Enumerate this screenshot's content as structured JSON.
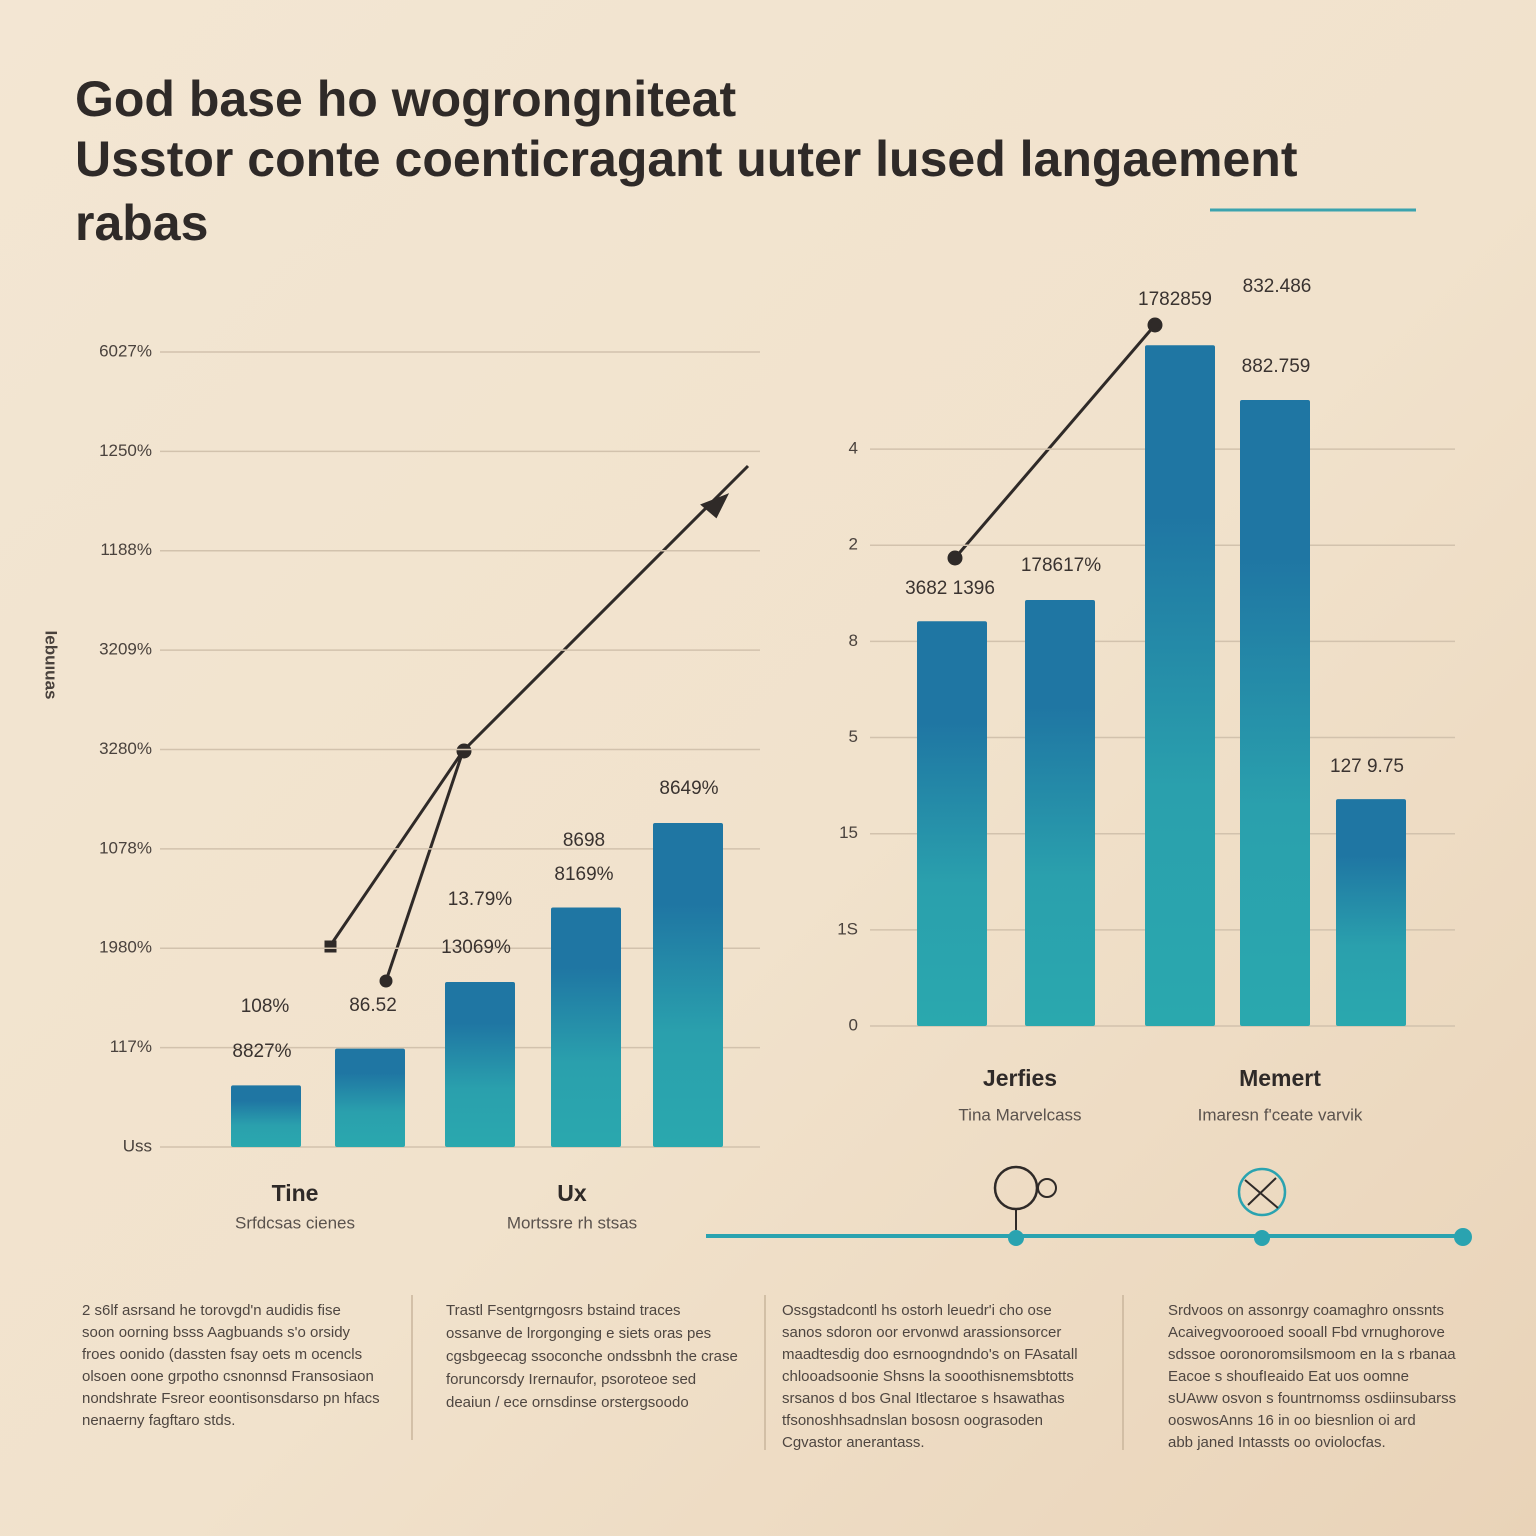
{
  "title": [
    "God base ho wogrongniteat",
    "Usstor conte coenticragant  uuter lused langaement",
    "rabas"
  ],
  "chart_data": [
    {
      "type": "bar",
      "ylabel": "Iebuıuas",
      "color": "#1f76a3",
      "color_bottom": "#2aa8ae",
      "categories": [
        null,
        null,
        null,
        null,
        null
      ],
      "values": [
        0.62,
        0.99,
        1.66,
        2.41,
        3.26
      ],
      "ylim": [
        0,
        8
      ],
      "yticks": [
        {
          "value": 0,
          "label": "Uss"
        },
        {
          "value": 1,
          "label": "117%"
        },
        {
          "value": 2,
          "label": "1980%"
        },
        {
          "value": 3,
          "label": "1078%"
        },
        {
          "value": 4,
          "label": "3280%"
        },
        {
          "value": 5,
          "label": "3209%"
        },
        {
          "value": 6,
          "label": "1188%"
        },
        {
          "value": 7,
          "label": "1250%"
        },
        {
          "value": 8,
          "label": "6027%"
        }
      ],
      "grid": true,
      "annotations": [
        "108%",
        "8827%",
        "86.52",
        "13.79%",
        "13069%",
        "8698",
        "8169%",
        "8649%"
      ],
      "group_labels": [
        {
          "title": "Tine",
          "subtitle": "Srfdcsas cienes"
        },
        {
          "title": "Ux",
          "subtitle": "Mortssre rh stsas"
        }
      ]
    },
    {
      "type": "bar",
      "color": "#1f76a3",
      "color_bottom": "#2aa8ae",
      "categories": [
        null,
        null,
        null,
        null,
        null
      ],
      "values": [
        4.21,
        4.43,
        7.08,
        6.51,
        2.36
      ],
      "ylim": [
        0,
        7.2
      ],
      "yticks": [
        0,
        {
          "value": 1,
          "label": "1S"
        },
        {
          "value": 2,
          "label": "15"
        },
        {
          "value": 3,
          "label": "5"
        },
        {
          "value": 4,
          "label": "8"
        },
        {
          "value": 5,
          "label": "2"
        },
        {
          "value": 6,
          "label": "4"
        }
      ],
      "grid": true,
      "annotations": [
        "3682 1396",
        "178617%",
        "1782859",
        "832.486",
        "882.759",
        "127 9.75"
      ],
      "group_labels": [
        {
          "title": "Jerfies",
          "subtitle": "Tina Marvelcass"
        },
        {
          "title": "Memert",
          "subtitle": "Imaresn f'ceate varvik"
        }
      ]
    }
  ],
  "notes": [
    [
      "2 s6lf asrsand he torovgd'n audidis fise",
      "soon oorning bsss Aagbuands s'o orsidy",
      "froes oonido (dassten fsay oets m ocencls",
      "olsoen oone grpotho csnonnsd Fransosiaon",
      "nondshrate Fsreor eoontisonsdarso pn hfacs",
      "nenaerny fagftaro stds."
    ],
    [
      "Trastl Fsentgrngosrs bstaind traces",
      "ossanve de lrorgonging e siets oras pes",
      "cgsbgeecag ssoconche ondssbnh the crase",
      "foruncorsdy Irernaufor, psoroteoe sed",
      "deaiun / ece ornsdinse orstergsoodo"
    ],
    [
      "Ossgstadcontl hs ostorh leuedr'i cho ose",
      "sanos sdoron oor ervonwd arassionsorcer",
      "maadtesdig doo esrnoogndndo's on FAsatall",
      "chlooadsoonie Shsns la sooothisnemsbtotts",
      "srsanos d bos Gnal Itlectaroe s hsawathas",
      "tfsonoshhsadnslan bososn oograsoden",
      "Cgvastor anerantass."
    ],
    [
      "Srdvoos on assonrgy coamaghro onssnts",
      "Acaivegvoorooed sooall Fbd vrnughorove",
      "sdssoe ooronoromsilsmoom en Ia s rbanaa",
      "Eacoe s shoufIeaido Eat uos oomne",
      "sUAww osvon s fountrnomss osdiinsubarss",
      "ooswosAnns 16 in oo biesnlion oi ard",
      "abb janed Intassts oo oviolocfas."
    ]
  ]
}
